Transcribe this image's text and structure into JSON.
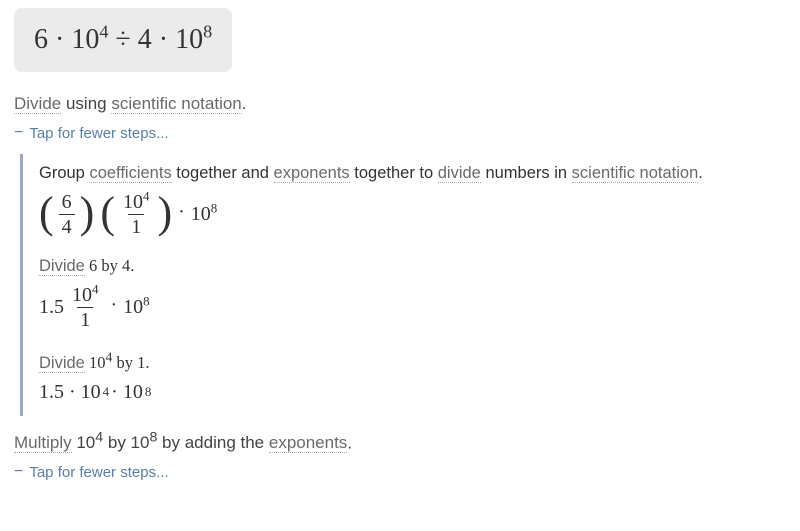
{
  "problem": {
    "expression_html": "6 · 10<sup>4</sup> ÷ 4 · 10<sup>8</sup>"
  },
  "instruction1": {
    "divide": "Divide",
    "mid": " using ",
    "sci": "scientific notation",
    "end": "."
  },
  "tap": {
    "minus": "−",
    "label": "Tap for fewer steps..."
  },
  "step_group": {
    "text1": {
      "a": "Group ",
      "coef": "coefficients",
      "b": " together and ",
      "exp": "exponents",
      "c": " together to ",
      "div": "divide",
      "d": " numbers in ",
      "sci": "scientific notation",
      "e": "."
    },
    "math1": {
      "lp1": "(",
      "frac1_num": "6",
      "frac1_den": "4",
      "rp1": ")",
      "lp2": "(",
      "frac2_num_html": "10<sup>4</sup>",
      "frac2_den": "1",
      "rp2": ")",
      "dot": "·",
      "tail_html": "10<sup>8</sup>"
    },
    "text2": {
      "div": "Divide",
      "rest_html": " 6 by 4."
    },
    "math2": {
      "lead": "1.5",
      "frac_num_html": "10<sup>4</sup>",
      "frac_den": "1",
      "dot": "·",
      "tail_html": "10<sup>8</sup>"
    },
    "text3": {
      "div": "Divide",
      "rest_html": " 10<sup>4</sup> by 1."
    },
    "math3_html": "1.5 · 10<sup>4</sup> · 10<sup>8</sup>"
  },
  "instruction2": {
    "mul": "Multiply",
    "mid1_html": " 10<sup>4</sup> by 10<sup>8</sup> by adding the ",
    "exp": "exponents",
    "end": "."
  }
}
